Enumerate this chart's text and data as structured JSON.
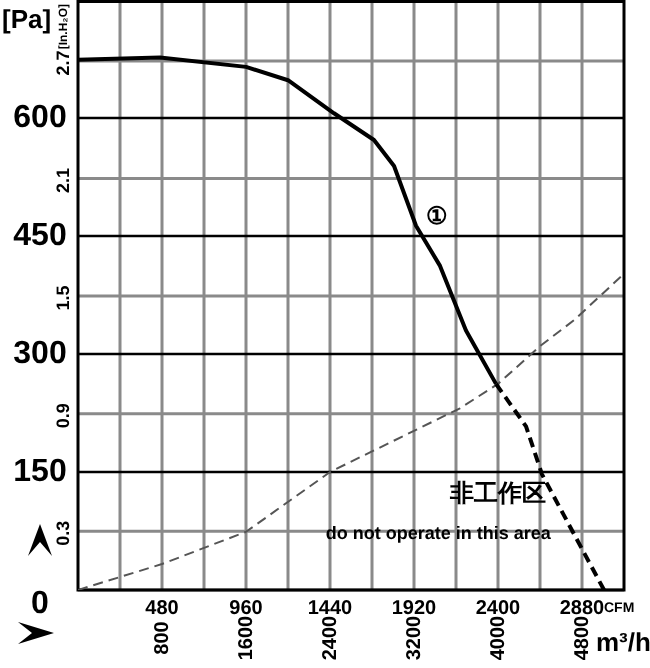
{
  "chart_data": {
    "type": "line",
    "xlabel": "m³/h",
    "x2label": "CFM",
    "ylabel": "[Pa]",
    "y2label": "[In.H₂O]",
    "xlim": [
      0,
      5200
    ],
    "xticks": [
      {
        "value": 400,
        "label": null
      },
      800,
      {
        "value": 1200,
        "label": null
      },
      1600,
      {
        "value": 2000,
        "label": null
      },
      2400,
      {
        "value": 2800,
        "label": null
      },
      3200,
      {
        "value": 3600,
        "label": null
      },
      4000,
      {
        "value": 4400,
        "label": null
      },
      4800
    ],
    "x2lim": [
      0,
      3120
    ],
    "x2ticks": [
      480,
      960,
      1440,
      1920,
      2400,
      2880
    ],
    "ylim": [
      0,
      750
    ],
    "yticks": [
      0,
      150,
      300,
      450,
      600
    ],
    "y2lim": [
      0,
      3.011
    ],
    "y2ticks": [
      0.3,
      0.9,
      1.5,
      2.1,
      2.7
    ],
    "grid": true,
    "marker": "none",
    "legend": false,
    "series": [
      {
        "name": "①",
        "color": "#000000",
        "line_style": "solid",
        "x": [
          0,
          781,
          1600,
          2000,
          2438,
          2819,
          3010,
          3219,
          3448,
          3695,
          3981
        ],
        "values": [
          674,
          677,
          665,
          648,
          606,
          572,
          539,
          463,
          412,
          330,
          262
        ]
      },
      {
        "color": "#000000",
        "line_style": "dashed",
        "x": [
          3981,
          4267,
          4419,
          4724,
          5010
        ],
        "values": [
          262,
          208,
          147,
          71,
          0
        ]
      },
      {
        "color": "#555555",
        "line_style": "dashed",
        "x": [
          0,
          800,
          1600,
          2400,
          3638,
          4000,
          4400,
          4724,
          5200
        ],
        "values": [
          0,
          33,
          74,
          150,
          231,
          262,
          310,
          343,
          402
        ]
      }
    ],
    "annotations": [
      "非工作区",
      "do not operate in this area"
    ]
  }
}
